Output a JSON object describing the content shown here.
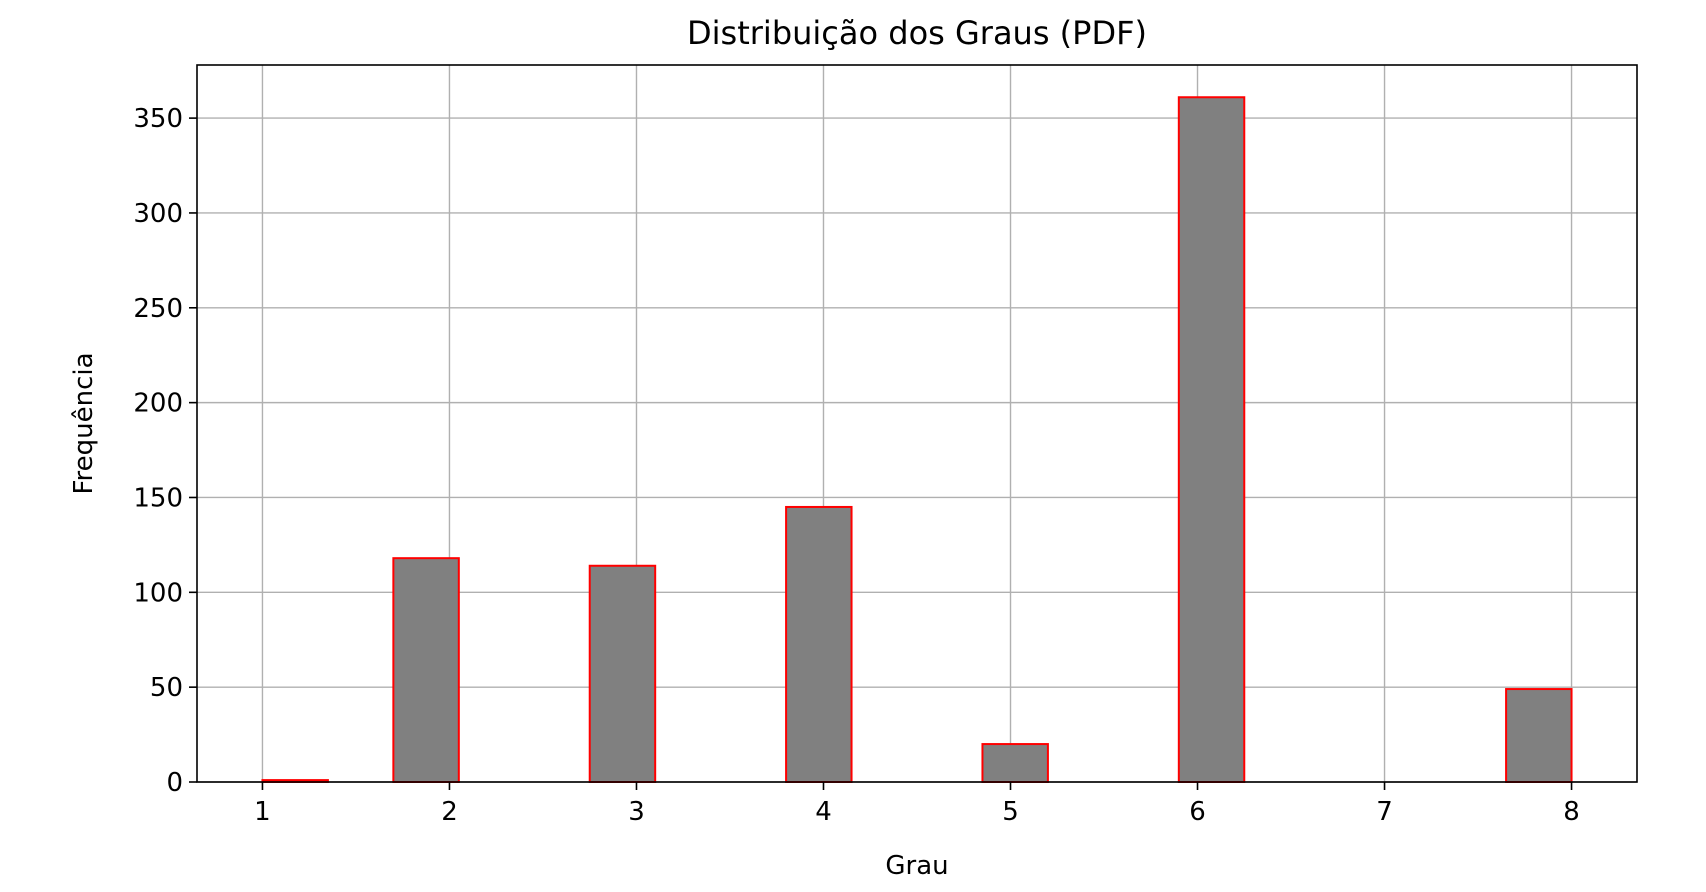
{
  "chart_data": {
    "type": "bar",
    "title": "Distribuição dos Graus (PDF)",
    "xlabel": "Grau",
    "ylabel": "Frequência",
    "xlim": [
      0.65,
      8.35
    ],
    "ylim": [
      0,
      378
    ],
    "x_ticks": [
      1,
      2,
      3,
      4,
      5,
      6,
      7,
      8
    ],
    "x_tick_labels": [
      "1",
      "2",
      "3",
      "4",
      "5",
      "6",
      "7",
      "8"
    ],
    "y_ticks": [
      0,
      50,
      100,
      150,
      200,
      250,
      300,
      350
    ],
    "y_tick_labels": [
      "0",
      "50",
      "100",
      "150",
      "200",
      "250",
      "300",
      "350"
    ],
    "grid": true,
    "legend": "none",
    "bins": [
      {
        "start": 1.0,
        "end": 1.35,
        "value": 1
      },
      {
        "start": 1.35,
        "end": 1.7,
        "value": 0
      },
      {
        "start": 1.7,
        "end": 2.05,
        "value": 118
      },
      {
        "start": 2.05,
        "end": 2.4,
        "value": 0
      },
      {
        "start": 2.4,
        "end": 2.75,
        "value": 0
      },
      {
        "start": 2.75,
        "end": 3.1,
        "value": 114
      },
      {
        "start": 3.1,
        "end": 3.45,
        "value": 0
      },
      {
        "start": 3.45,
        "end": 3.8,
        "value": 0
      },
      {
        "start": 3.8,
        "end": 4.15,
        "value": 145
      },
      {
        "start": 4.15,
        "end": 4.5,
        "value": 0
      },
      {
        "start": 4.5,
        "end": 4.85,
        "value": 0
      },
      {
        "start": 4.85,
        "end": 5.2,
        "value": 20
      },
      {
        "start": 5.2,
        "end": 5.55,
        "value": 0
      },
      {
        "start": 5.55,
        "end": 5.9,
        "value": 0
      },
      {
        "start": 5.9,
        "end": 6.25,
        "value": 361
      },
      {
        "start": 6.25,
        "end": 6.6,
        "value": 0
      },
      {
        "start": 6.6,
        "end": 6.95,
        "value": 0
      },
      {
        "start": 6.95,
        "end": 7.3,
        "value": 0
      },
      {
        "start": 7.3,
        "end": 7.65,
        "value": 0
      },
      {
        "start": 7.65,
        "end": 8.0,
        "value": 49
      }
    ],
    "colors": {
      "bar_fill": "#808080",
      "bar_edge": "#ff0000",
      "grid": "#b0b0b0",
      "axis": "#000000"
    }
  }
}
